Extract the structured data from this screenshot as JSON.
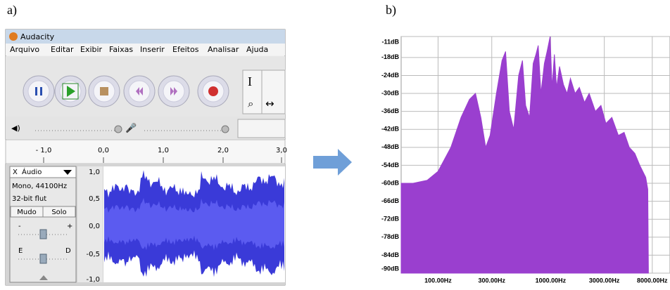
{
  "panel_labels": [
    "a)",
    "b)"
  ],
  "audacity": {
    "title": "Audacity",
    "menu": [
      "Arquivo",
      "Editar",
      "Exibir",
      "Faixas",
      "Inserir",
      "Efeitos",
      "Analisar",
      "Ajuda"
    ],
    "ruler": [
      "- 1,0",
      "0,0",
      "1,0",
      "2,0",
      "3,0"
    ],
    "track": {
      "close": "X",
      "name": "Áudio",
      "info": [
        "Mono, 44100Hz",
        "32-bit flut"
      ],
      "buttons": [
        "Mudo",
        "Solo"
      ],
      "gain_labels": [
        "-",
        "+"
      ],
      "pan_labels": [
        "E",
        "D"
      ]
    },
    "amplitude": [
      "1,0",
      "0,5",
      "0,0",
      "-0,5",
      "-1,0"
    ]
  },
  "chart_data": {
    "type": "area",
    "log_x": true,
    "color": "#9a3fcf",
    "grid": true,
    "xlim": [
      47,
      11500
    ],
    "ylim": [
      -90,
      -11
    ],
    "xticks": [
      {
        "value": 100,
        "label": "100.00Hz"
      },
      {
        "value": 300,
        "label": "300.00Hz"
      },
      {
        "value": 1000,
        "label": "1000.00Hz"
      },
      {
        "value": 3000,
        "label": "3000.00Hz"
      },
      {
        "value": 8000,
        "label": "8000.00Hz"
      }
    ],
    "yticks": [
      {
        "value": -11,
        "label": "-11dB"
      },
      {
        "value": -18,
        "label": "-18dB"
      },
      {
        "value": -24,
        "label": "-24dB"
      },
      {
        "value": -30,
        "label": "-30dB"
      },
      {
        "value": -36,
        "label": "-36dB"
      },
      {
        "value": -42,
        "label": "-42dB"
      },
      {
        "value": -48,
        "label": "-48dB"
      },
      {
        "value": -54,
        "label": "-54dB"
      },
      {
        "value": -60,
        "label": "-60dB"
      },
      {
        "value": -66,
        "label": "-66dB"
      },
      {
        "value": -72,
        "label": "-72dB"
      },
      {
        "value": -78,
        "label": "-78dB"
      },
      {
        "value": -84,
        "label": "-84dB"
      },
      {
        "value": -90,
        "label": "-90dB"
      }
    ],
    "x": [
      47,
      60,
      80,
      100,
      130,
      160,
      190,
      215,
      240,
      265,
      290,
      330,
      370,
      398,
      430,
      470,
      520,
      562,
      600,
      650,
      700,
      740,
      776,
      820,
      880,
      930,
      990,
      1030,
      1080,
      1130,
      1200,
      1300,
      1400,
      1500,
      1650,
      1800,
      2000,
      2200,
      2500,
      2800,
      3100,
      3500,
      4000,
      4500,
      5000,
      5600,
      6200,
      7000,
      7300,
      7400
    ],
    "values": [
      -60,
      -60,
      -59,
      -56,
      -48,
      -38,
      -32,
      -30,
      -38,
      -48,
      -44,
      -30,
      -19,
      -16,
      -36,
      -42,
      -24,
      -19,
      -34,
      -38,
      -20,
      -17,
      -14,
      -30,
      -20,
      -16,
      -11,
      -28,
      -17,
      -28,
      -21,
      -27,
      -30,
      -25,
      -30,
      -28,
      -33,
      -30,
      -36,
      -34,
      -40,
      -38,
      -44,
      -43,
      -48,
      -50,
      -54,
      -58,
      -62,
      -90
    ]
  }
}
